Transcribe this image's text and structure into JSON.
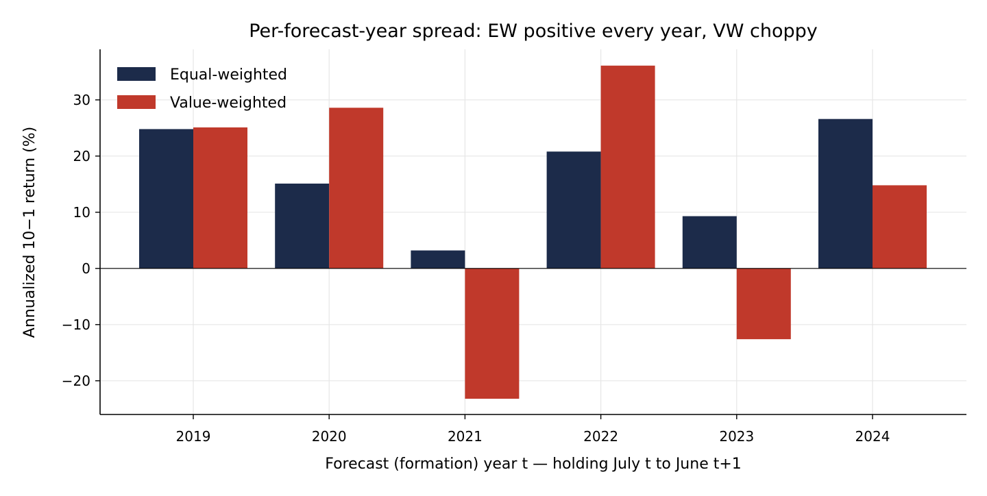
{
  "chart_data": {
    "type": "bar",
    "title": "Per-forecast-year spread: EW positive every year, VW choppy",
    "xlabel": "Forecast (formation) year t — holding July t to June t+1",
    "ylabel": "Annualized 10−1 return (%)",
    "categories": [
      "2019",
      "2020",
      "2021",
      "2022",
      "2023",
      "2024"
    ],
    "series": [
      {
        "name": "Equal-weighted",
        "color": "#1c2b4a",
        "values": [
          24.8,
          15.1,
          3.2,
          20.8,
          9.3,
          26.6
        ]
      },
      {
        "name": "Value-weighted",
        "color": "#c0392b",
        "values": [
          25.1,
          28.6,
          -23.2,
          36.1,
          -12.6,
          14.8
        ]
      }
    ],
    "ylim": [
      -26,
      39
    ],
    "yticks": [
      -20,
      -10,
      0,
      10,
      20,
      30
    ],
    "ytick_labels": [
      "−20",
      "−10",
      "0",
      "10",
      "20",
      "30"
    ],
    "grid": true,
    "zero_line": true,
    "legend_position": "top-left"
  }
}
